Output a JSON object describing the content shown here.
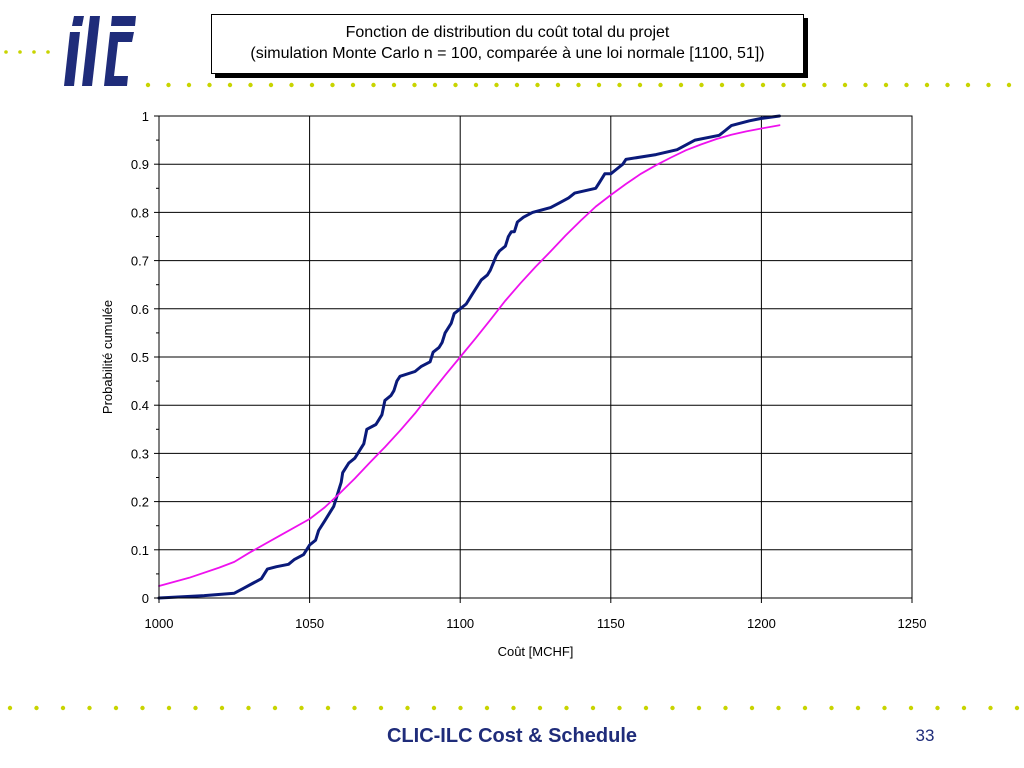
{
  "header": {
    "logo_text": "ilc",
    "colors": {
      "brand_navy": "#1f2c7a",
      "dot_green": "#c8d400"
    }
  },
  "chart_data": {
    "type": "line",
    "title": "Fonction de distribution du coût total du projet",
    "subtitle": "(simulation Monte Carlo n = 100, comparée à une loi normale [1100, 51])",
    "xlabel": "Coût [MCHF]",
    "ylabel": "Probabilité cumulée",
    "xlim": [
      1000,
      1250
    ],
    "ylim": [
      0,
      1
    ],
    "x_ticks": [
      1000,
      1050,
      1100,
      1150,
      1200,
      1250
    ],
    "y_ticks": [
      0,
      0.1,
      0.2,
      0.3,
      0.4,
      0.5,
      0.6,
      0.7,
      0.8,
      0.9,
      1
    ],
    "y_tick_labels": [
      "0",
      "0.1",
      "0.2",
      "0.3",
      "0.4",
      "0.5",
      "0.6",
      "0.7",
      "0.8",
      "0.9",
      "1"
    ],
    "grid": true,
    "series": [
      {
        "color": "#0a1a7a",
        "points": [
          [
            1000,
            0.0
          ],
          [
            1015,
            0.005
          ],
          [
            1025,
            0.01
          ],
          [
            1028,
            0.02
          ],
          [
            1031,
            0.03
          ],
          [
            1034,
            0.04
          ],
          [
            1036,
            0.06
          ],
          [
            1039,
            0.065
          ],
          [
            1043,
            0.07
          ],
          [
            1045,
            0.08
          ],
          [
            1048,
            0.09
          ],
          [
            1049,
            0.1
          ],
          [
            1050,
            0.11
          ],
          [
            1052,
            0.12
          ],
          [
            1053,
            0.14
          ],
          [
            1055,
            0.16
          ],
          [
            1056,
            0.17
          ],
          [
            1057,
            0.18
          ],
          [
            1058,
            0.19
          ],
          [
            1059,
            0.21
          ],
          [
            1060,
            0.23
          ],
          [
            1060.5,
            0.24
          ],
          [
            1061,
            0.26
          ],
          [
            1062,
            0.27
          ],
          [
            1063,
            0.28
          ],
          [
            1065,
            0.29
          ],
          [
            1066,
            0.3
          ],
          [
            1067,
            0.31
          ],
          [
            1068,
            0.32
          ],
          [
            1069,
            0.35
          ],
          [
            1072,
            0.36
          ],
          [
            1073,
            0.37
          ],
          [
            1074,
            0.38
          ],
          [
            1075,
            0.41
          ],
          [
            1077,
            0.42
          ],
          [
            1078,
            0.43
          ],
          [
            1079,
            0.45
          ],
          [
            1080,
            0.46
          ],
          [
            1085,
            0.47
          ],
          [
            1087,
            0.48
          ],
          [
            1090,
            0.49
          ],
          [
            1091,
            0.51
          ],
          [
            1093,
            0.52
          ],
          [
            1094,
            0.53
          ],
          [
            1095,
            0.55
          ],
          [
            1097,
            0.57
          ],
          [
            1098,
            0.59
          ],
          [
            1100,
            0.6
          ],
          [
            1102,
            0.61
          ],
          [
            1104,
            0.63
          ],
          [
            1106,
            0.65
          ],
          [
            1107,
            0.66
          ],
          [
            1109,
            0.67
          ],
          [
            1110,
            0.68
          ],
          [
            1112,
            0.71
          ],
          [
            1113,
            0.72
          ],
          [
            1115,
            0.73
          ],
          [
            1116,
            0.75
          ],
          [
            1117,
            0.76
          ],
          [
            1118,
            0.76
          ],
          [
            1119,
            0.78
          ],
          [
            1121,
            0.79
          ],
          [
            1124,
            0.8
          ],
          [
            1130,
            0.81
          ],
          [
            1133,
            0.82
          ],
          [
            1136,
            0.83
          ],
          [
            1138,
            0.84
          ],
          [
            1145,
            0.85
          ],
          [
            1146,
            0.86
          ],
          [
            1147,
            0.87
          ],
          [
            1148,
            0.88
          ],
          [
            1150,
            0.88
          ],
          [
            1152,
            0.89
          ],
          [
            1154,
            0.9
          ],
          [
            1155,
            0.91
          ],
          [
            1165,
            0.92
          ],
          [
            1172,
            0.93
          ],
          [
            1178,
            0.95
          ],
          [
            1186,
            0.96
          ],
          [
            1188,
            0.97
          ],
          [
            1190,
            0.98
          ],
          [
            1196,
            0.99
          ],
          [
            1200,
            0.995
          ],
          [
            1206,
            1.0
          ]
        ]
      },
      {
        "color": "#ee11ee",
        "points": [
          [
            1000,
            0.025
          ],
          [
            1010,
            0.042
          ],
          [
            1020,
            0.063
          ],
          [
            1025,
            0.075
          ],
          [
            1030,
            0.094
          ],
          [
            1040,
            0.129
          ],
          [
            1050,
            0.164
          ],
          [
            1055,
            0.188
          ],
          [
            1060,
            0.217
          ],
          [
            1065,
            0.248
          ],
          [
            1070,
            0.281
          ],
          [
            1075,
            0.313
          ],
          [
            1080,
            0.347
          ],
          [
            1085,
            0.383
          ],
          [
            1090,
            0.423
          ],
          [
            1095,
            0.462
          ],
          [
            1100,
            0.5
          ],
          [
            1105,
            0.538
          ],
          [
            1110,
            0.577
          ],
          [
            1115,
            0.617
          ],
          [
            1120,
            0.653
          ],
          [
            1125,
            0.687
          ],
          [
            1130,
            0.719
          ],
          [
            1135,
            0.752
          ],
          [
            1140,
            0.783
          ],
          [
            1145,
            0.812
          ],
          [
            1150,
            0.836
          ],
          [
            1155,
            0.859
          ],
          [
            1160,
            0.88
          ],
          [
            1165,
            0.898
          ],
          [
            1170,
            0.914
          ],
          [
            1175,
            0.929
          ],
          [
            1180,
            0.941
          ],
          [
            1185,
            0.952
          ],
          [
            1190,
            0.961
          ],
          [
            1195,
            0.968
          ],
          [
            1200,
            0.974
          ],
          [
            1206,
            0.981
          ]
        ]
      }
    ]
  },
  "footer": {
    "title": "CLIC-ILC Cost & Schedule",
    "page_number": "33"
  }
}
